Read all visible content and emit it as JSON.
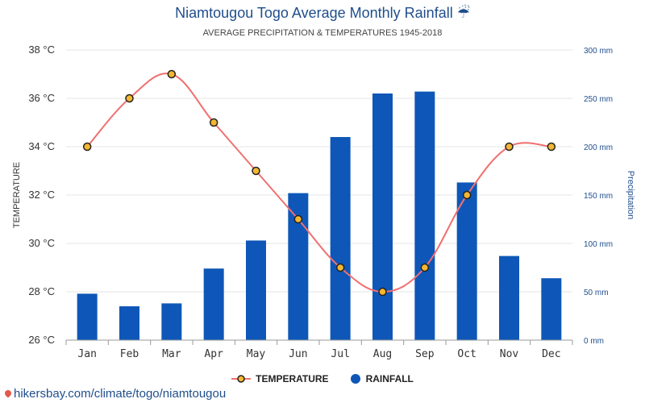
{
  "chart_data": {
    "type": "bar+line",
    "title": "Niamtougou Togo Average Monthly Rainfall ☔",
    "subtitle": "AVERAGE PRECIPITATION & TEMPERATURES 1945-2018",
    "categories": [
      "Jan",
      "Feb",
      "Mar",
      "Apr",
      "May",
      "Jun",
      "Jul",
      "Aug",
      "Sep",
      "Oct",
      "Nov",
      "Dec"
    ],
    "series": [
      {
        "name": "TEMPERATURE",
        "type": "line",
        "axis": "left",
        "color": "#f07070",
        "marker_fill": "#f5b731",
        "values": [
          34,
          36,
          37,
          35,
          33,
          31,
          29,
          28,
          29,
          32,
          34,
          34
        ]
      },
      {
        "name": "RAINFALL",
        "type": "bar",
        "axis": "right",
        "color": "#0e57b8",
        "values": [
          48,
          35,
          38,
          74,
          103,
          152,
          210,
          255,
          257,
          163,
          87,
          64
        ]
      }
    ],
    "y_left": {
      "label": "TEMPERATURE",
      "min": 26,
      "max": 38,
      "ticks": [
        "26 °C",
        "28 °C",
        "30 °C",
        "32 °C",
        "34 °C",
        "36 °C",
        "38 °C"
      ]
    },
    "y_right": {
      "label": "Precipitation",
      "min": 0,
      "max": 300,
      "ticks": [
        "0 mm",
        "50 mm",
        "100 mm",
        "150 mm",
        "200 mm",
        "250 mm",
        "300 mm"
      ]
    },
    "grid": true,
    "legend_position": "bottom-center"
  },
  "footer": {
    "link_text": "hikersbay.com/climate/togo/niamtougou"
  }
}
